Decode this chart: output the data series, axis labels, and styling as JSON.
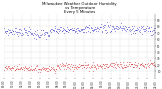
{
  "title": "Milwaukee Weather Outdoor Humidity\nvs Temperature\nEvery 5 Minutes",
  "background_color": "#ffffff",
  "grid_color": "#999999",
  "humidity_color": "#0000bb",
  "temp_color": "#cc0000",
  "ylim": [
    0,
    100
  ],
  "xlim": [
    0,
    287
  ],
  "yticks": [
    10,
    20,
    30,
    40,
    50,
    60,
    70,
    80,
    90
  ],
  "title_fontsize": 2.8,
  "tick_fontsize": 2.0,
  "num_points": 288,
  "num_xticks": 18
}
